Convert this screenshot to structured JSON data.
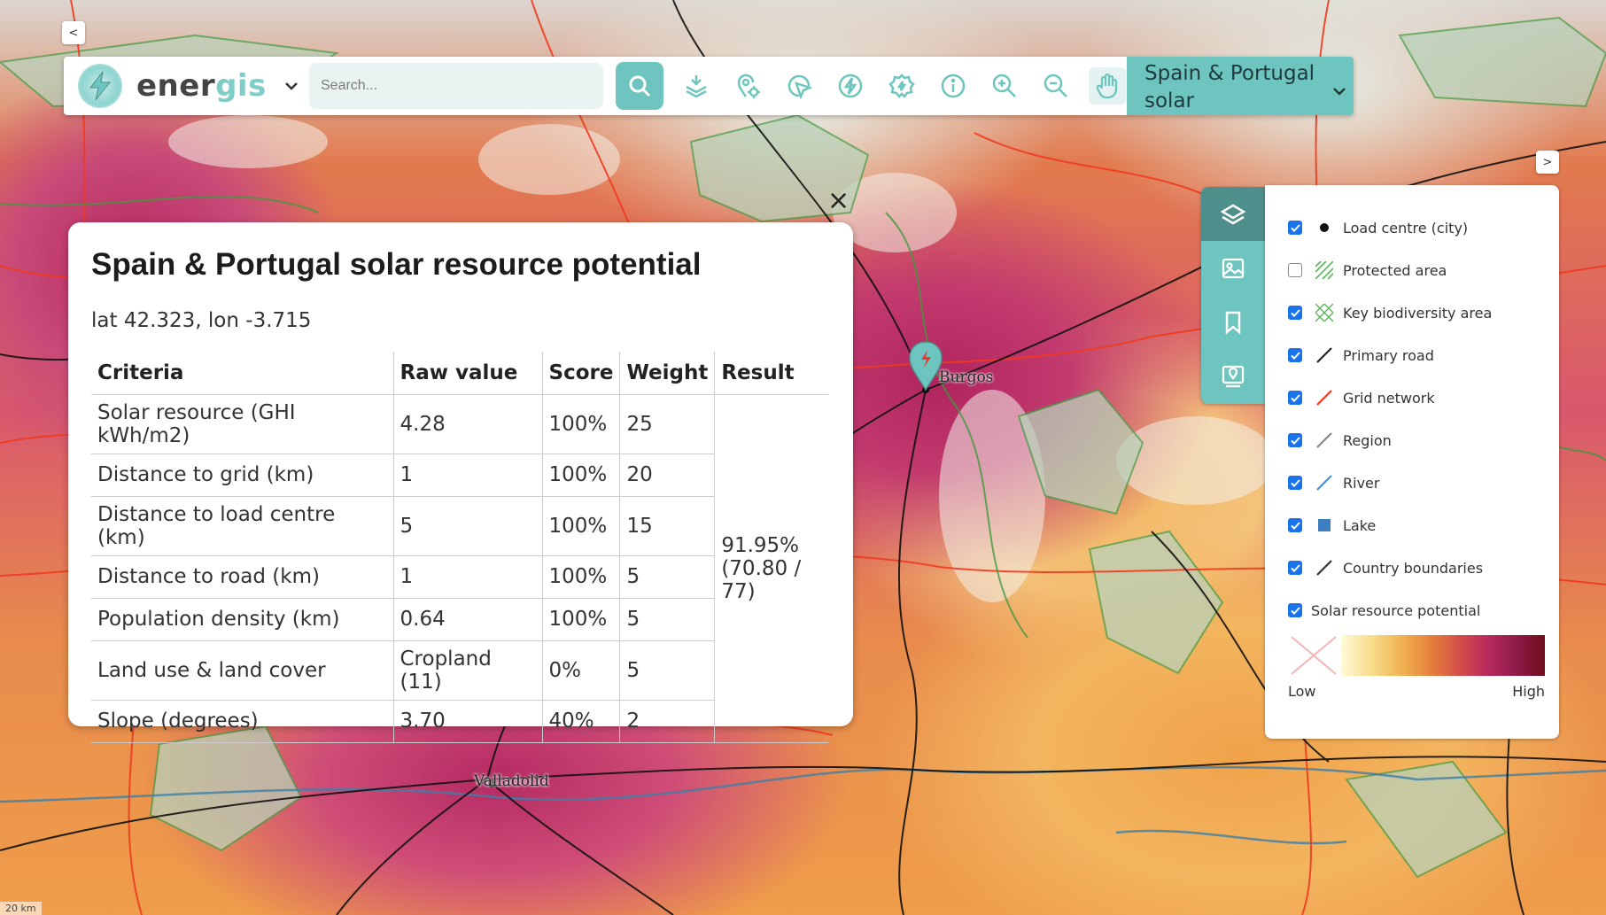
{
  "app": {
    "name_part1": "ener",
    "name_part2": "gis"
  },
  "search": {
    "placeholder": "Search..."
  },
  "region_selector": {
    "label": "Spain & Portugal solar"
  },
  "map": {
    "cities": [
      "Burgos",
      "Valladolid"
    ],
    "scale": "20 km"
  },
  "nav": {
    "collapse_left": "<",
    "expand_right": ">"
  },
  "popup": {
    "title": "Spain & Portugal solar resource potential",
    "coords": "lat 42.323, lon -3.715",
    "close": "×",
    "headers": [
      "Criteria",
      "Raw value",
      "Score",
      "Weight",
      "Result"
    ],
    "rows": [
      {
        "criteria": "Solar resource (GHI kWh/m2)",
        "raw": "4.28",
        "score": "100%",
        "weight": "25"
      },
      {
        "criteria": "Distance to grid (km)",
        "raw": "1",
        "score": "100%",
        "weight": "20"
      },
      {
        "criteria": "Distance to load centre (km)",
        "raw": "5",
        "score": "100%",
        "weight": "15"
      },
      {
        "criteria": "Distance to road (km)",
        "raw": "1",
        "score": "100%",
        "weight": "5"
      },
      {
        "criteria": "Population density (km)",
        "raw": "0.64",
        "score": "100%",
        "weight": "5"
      },
      {
        "criteria": "Land use & land cover",
        "raw": "Cropland (11)",
        "score": "0%",
        "weight": "5"
      },
      {
        "criteria": "Slope (degrees)",
        "raw": "3.70",
        "score": "40%",
        "weight": "2"
      }
    ],
    "result_line1": "91.95%",
    "result_line2": "(70.80 / 77)"
  },
  "legend": {
    "items": [
      {
        "label": "Load centre (city)",
        "checked": true,
        "icon": "dot-icon"
      },
      {
        "label": "Protected area",
        "checked": false,
        "icon": "hatch-green-icon"
      },
      {
        "label": "Key biodiversity area",
        "checked": true,
        "icon": "cross-hatch-icon"
      },
      {
        "label": "Primary road",
        "checked": true,
        "icon": "line-black-icon"
      },
      {
        "label": "Grid network",
        "checked": true,
        "icon": "line-red-icon"
      },
      {
        "label": "Region",
        "checked": true,
        "icon": "line-grey-icon"
      },
      {
        "label": "River",
        "checked": true,
        "icon": "line-blue-icon"
      },
      {
        "label": "Lake",
        "checked": true,
        "icon": "square-blue-icon"
      },
      {
        "label": "Country boundaries",
        "checked": true,
        "icon": "line-dark-icon"
      },
      {
        "label": "Solar resource potential",
        "checked": true,
        "icon": ""
      }
    ],
    "ramp_low": "Low",
    "ramp_high": "High"
  },
  "colors": {
    "accent": "#6ec5bf",
    "accent_dark": "#4f8f8b",
    "checkbox": "#1a73e8"
  }
}
